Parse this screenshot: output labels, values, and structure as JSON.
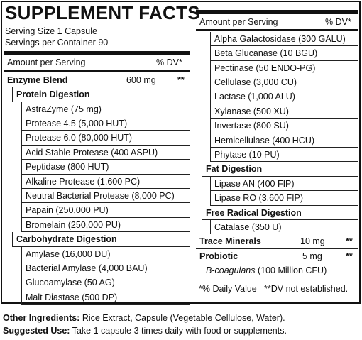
{
  "label": {
    "title": "SUPPLEMENT FACTS",
    "serving_size": "Serving Size 1 Capsule",
    "servings_per_container": "Servings per Container 90",
    "header_left": {
      "amount": "Amount per Serving",
      "dv": "% DV*"
    },
    "enzyme_blend": {
      "name": "Enzyme Blend",
      "amount": "600 mg",
      "dv": "**"
    },
    "groups": [
      {
        "name": "Protein Digestion",
        "items": [
          "AstraZyme (75 mg)",
          "Protease 4.5 (5,000 HUT)",
          "Protease 6.0 (80,000 HUT)",
          "Acid Stable Protease (400 ASPU)",
          "Peptidase (800 HUT)",
          "Alkaline Protease (1,600 PC)",
          "Neutral Bacterial Protease (8,000 PC)",
          "Papain (250,000 PU)",
          "Bromelain (250,000 PU)"
        ]
      },
      {
        "name": "Carbohydrate Digestion",
        "items": [
          "Amylase (16,000 DU)",
          "Bacterial Amylase (4,000 BAU)",
          "Glucoamylase (50 AG)",
          "Malt Diastase (500 DP)"
        ]
      }
    ],
    "header_right": {
      "amount": "Amount per Serving",
      "dv": "% DV*"
    },
    "continued_items": [
      "Alpha Galactosidase (300 GALU)",
      "Beta Glucanase (10 BGU)",
      "Pectinase (50 ENDO-PG)",
      "Cellulase (3,000 CU)",
      "Lactase (1,000 ALU)",
      "Xylanase (500 XU)",
      "Invertase (800 SU)",
      "Hemicellulase (400 HCU)",
      "Phytase (10 PU)"
    ],
    "more_groups": [
      {
        "name": "Fat Digestion",
        "items": [
          "Lipase AN (400 FIP)",
          "Lipase RO (3,600 FIP)"
        ]
      },
      {
        "name": "Free Radical Digestion",
        "items": [
          "Catalase (350 U)"
        ]
      }
    ],
    "trace_minerals": {
      "name": "Trace Minerals",
      "amount": "10 mg",
      "dv": "**"
    },
    "probiotic": {
      "name": "Probiotic",
      "amount": "5 mg",
      "dv": "**"
    },
    "probiotic_strain": {
      "name": "B-coagulans",
      "amount": "(100 Million CFU)"
    },
    "footnotes": [
      "*% Daily Value",
      "**DV not established."
    ]
  },
  "other_ingredients": {
    "label": "Other Ingredients:",
    "text": "Rice Extract, Capsule (Vegetable Cellulose, Water)."
  },
  "suggested_use": {
    "label": "Suggested Use:",
    "text": "Take 1 capsule 3 times daily with food or supplements."
  }
}
